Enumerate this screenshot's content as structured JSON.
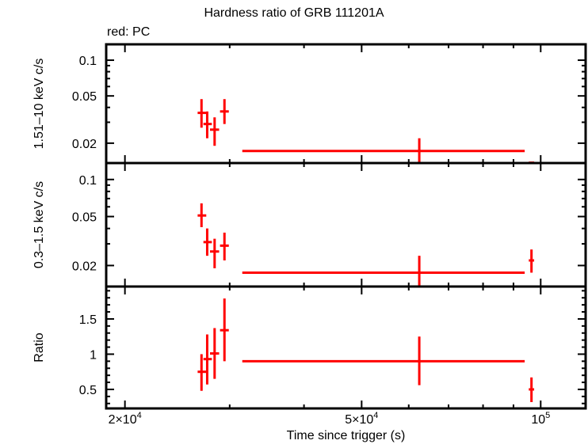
{
  "chart_data": {
    "type": "scatter",
    "title": "Hardness ratio of GRB 111201A",
    "subtitle": "red: PC",
    "xlabel": "Time since trigger (s)",
    "xscale": "log",
    "xlim": [
      18600,
      119000
    ],
    "x_ticks": [
      {
        "value": 20000,
        "label": "2×10⁴"
      },
      {
        "value": 50000,
        "label": "5×10⁴"
      },
      {
        "value": 100000,
        "label": "10⁵"
      }
    ],
    "series_color": "#ff0000",
    "legend": "red: PC",
    "panels": [
      {
        "name": "hard-band",
        "ylabel": "1.51–10 keV c/s",
        "yscale": "log",
        "ylim": [
          0.0136,
          0.136
        ],
        "y_ticks": [
          {
            "value": 0.02,
            "label": "0.02"
          },
          {
            "value": 0.05,
            "label": "0.05"
          },
          {
            "value": 0.1,
            "label": "0.1"
          }
        ],
        "points": [
          {
            "x": 26900,
            "xerr": [
              26500,
              27400
            ],
            "y": 0.036,
            "yerr": [
              0.027,
              0.047
            ]
          },
          {
            "x": 27500,
            "xerr": [
              27100,
              28000
            ],
            "y": 0.029,
            "yerr": [
              0.022,
              0.037
            ]
          },
          {
            "x": 28300,
            "xerr": [
              27800,
              28800
            ],
            "y": 0.026,
            "yerr": [
              0.019,
              0.033
            ]
          },
          {
            "x": 29400,
            "xerr": [
              28900,
              29900
            ],
            "y": 0.037,
            "yerr": [
              0.029,
              0.047
            ]
          },
          {
            "x": 62500,
            "xerr": [
              31500,
              94000
            ],
            "y": 0.0172,
            "yerr": [
              0.0136,
              0.022
            ]
          },
          {
            "x": 96500,
            "xerr": [
              95500,
              97500
            ],
            "y": 0.0137,
            "yerr": [
              0.0136,
              0.0139
            ]
          }
        ]
      },
      {
        "name": "soft-band",
        "ylabel": "0.3–1.5 keV c/s",
        "yscale": "log",
        "ylim": [
          0.0135,
          0.136
        ],
        "y_ticks": [
          {
            "value": 0.02,
            "label": "0.02"
          },
          {
            "value": 0.05,
            "label": "0.05"
          },
          {
            "value": 0.1,
            "label": "0.1"
          }
        ],
        "points": [
          {
            "x": 26900,
            "xerr": [
              26500,
              27400
            ],
            "y": 0.051,
            "yerr": [
              0.041,
              0.064
            ]
          },
          {
            "x": 27500,
            "xerr": [
              27100,
              28000
            ],
            "y": 0.031,
            "yerr": [
              0.024,
              0.04
            ]
          },
          {
            "x": 28300,
            "xerr": [
              27800,
              28800
            ],
            "y": 0.026,
            "yerr": [
              0.019,
              0.033
            ]
          },
          {
            "x": 29400,
            "xerr": [
              28900,
              29900
            ],
            "y": 0.029,
            "yerr": [
              0.022,
              0.037
            ]
          },
          {
            "x": 62500,
            "xerr": [
              31500,
              94000
            ],
            "y": 0.0175,
            "yerr": [
              0.0135,
              0.024
            ]
          },
          {
            "x": 96500,
            "xerr": [
              95500,
              97500
            ],
            "y": 0.022,
            "yerr": [
              0.0175,
              0.027
            ]
          }
        ]
      },
      {
        "name": "ratio",
        "ylabel": "Ratio",
        "yscale": "linear",
        "ylim": [
          0.23,
          1.96
        ],
        "y_ticks": [
          {
            "value": 0.5,
            "label": "0.5"
          },
          {
            "value": 1,
            "label": "1"
          },
          {
            "value": 1.5,
            "label": "1.5"
          }
        ],
        "points": [
          {
            "x": 26900,
            "xerr": [
              26500,
              27400
            ],
            "y": 0.75,
            "yerr": [
              0.48,
              1.0
            ]
          },
          {
            "x": 27500,
            "xerr": [
              27100,
              28000
            ],
            "y": 0.93,
            "yerr": [
              0.57,
              1.28
            ]
          },
          {
            "x": 28300,
            "xerr": [
              27800,
              28800
            ],
            "y": 1.01,
            "yerr": [
              0.65,
              1.37
            ]
          },
          {
            "x": 29400,
            "xerr": [
              28900,
              29900
            ],
            "y": 1.34,
            "yerr": [
              0.9,
              1.79
            ]
          },
          {
            "x": 62500,
            "xerr": [
              31500,
              94000
            ],
            "y": 0.9,
            "yerr": [
              0.56,
              1.25
            ]
          },
          {
            "x": 96500,
            "xerr": [
              95500,
              97500
            ],
            "y": 0.5,
            "yerr": [
              0.32,
              0.67
            ]
          }
        ]
      }
    ]
  }
}
